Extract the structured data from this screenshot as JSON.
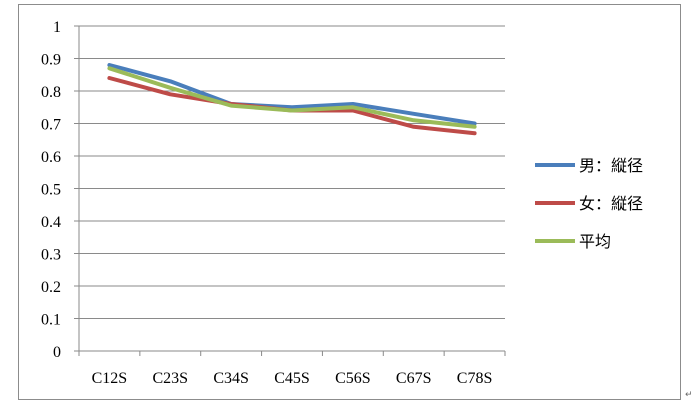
{
  "chart_data": {
    "type": "line",
    "title": "",
    "xlabel": "",
    "ylabel": "",
    "categories": [
      "C12S",
      "C23S",
      "C34S",
      "C45S",
      "C56S",
      "C67S",
      "C78S"
    ],
    "ylim": [
      0,
      1
    ],
    "yticks": [
      "0",
      "0.1",
      "0.2",
      "0.3",
      "0.4",
      "0.5",
      "0.6",
      "0.7",
      "0.8",
      "0.9",
      "1"
    ],
    "grid": true,
    "legend_position": "right",
    "series": [
      {
        "name": "男：縦径",
        "color": "#4a7ebb",
        "values": [
          0.88,
          0.83,
          0.76,
          0.75,
          0.76,
          0.73,
          0.7
        ]
      },
      {
        "name": "女：縦径",
        "color": "#be4b48",
        "values": [
          0.84,
          0.79,
          0.76,
          0.74,
          0.74,
          0.69,
          0.67
        ]
      },
      {
        "name": "平均",
        "color": "#9bbb59",
        "values": [
          0.87,
          0.81,
          0.755,
          0.74,
          0.75,
          0.71,
          0.69
        ]
      }
    ]
  },
  "page_mark": "↵"
}
